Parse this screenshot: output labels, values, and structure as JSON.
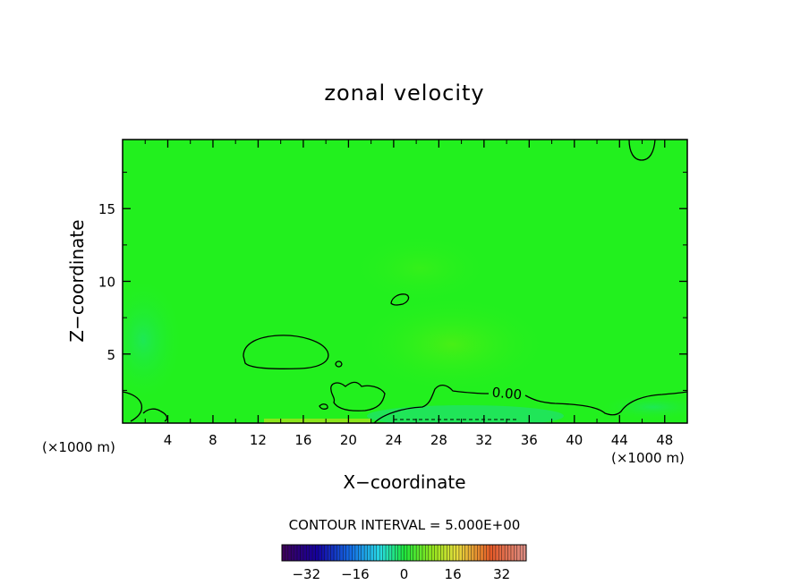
{
  "chart_data": {
    "type": "heatmap",
    "title": "zonal velocity",
    "xlabel": "X−coordinate",
    "ylabel": "Z−coordinate",
    "x_units": "(×1000 m)",
    "z_units": "(×1000 m)",
    "xlim": [
      0,
      50
    ],
    "ylim": [
      0.25,
      19.75
    ],
    "x_ticks": [
      4,
      8,
      12,
      16,
      20,
      24,
      28,
      32,
      36,
      40,
      44,
      48
    ],
    "y_ticks": [
      5,
      10,
      15
    ],
    "contour_label": "0.00",
    "contour_interval_text": "CONTOUR INTERVAL = 5.000E+00",
    "colorbar": {
      "range": [
        -40,
        40
      ],
      "ticks": [
        -32,
        -16,
        0,
        16,
        32
      ],
      "tick_labels": [
        "−32",
        "−16",
        "0",
        "16",
        "32"
      ]
    },
    "background_color": "#22f01e"
  }
}
